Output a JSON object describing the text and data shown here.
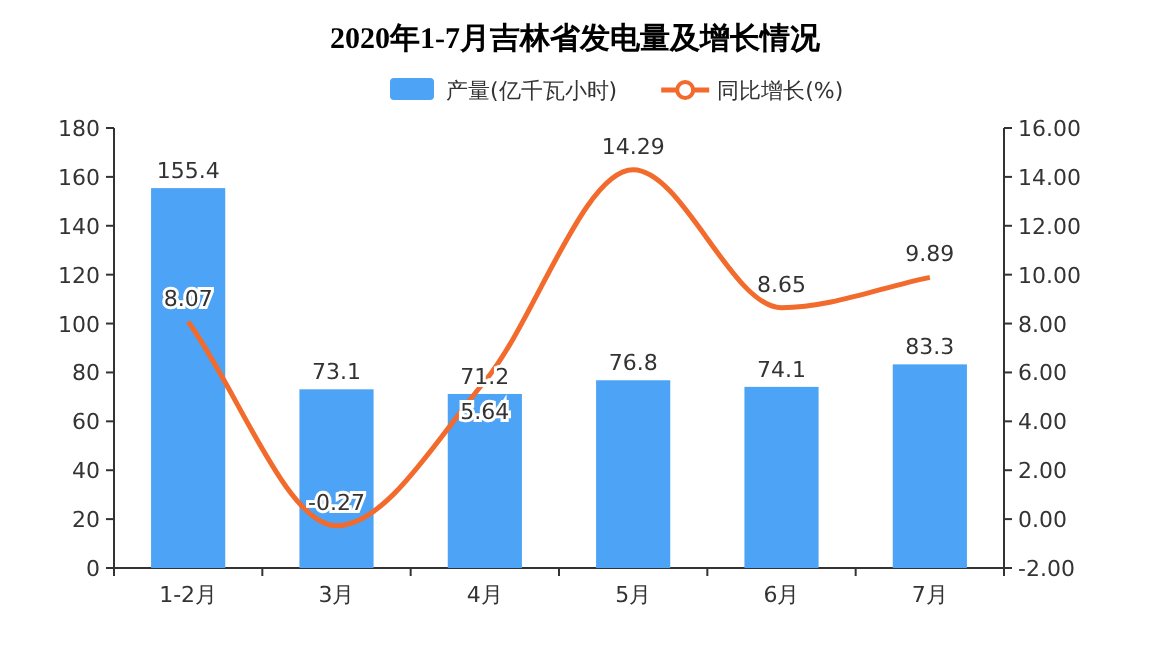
{
  "chart_data": {
    "type": "bar",
    "title": "2020年1-7月吉林省发电量及增长情况",
    "categories": [
      "1-2月",
      "3月",
      "4月",
      "5月",
      "6月",
      "7月"
    ],
    "series": [
      {
        "name": "产量(亿千瓦小时)",
        "color": "#4da3f5",
        "values": [
          155.4,
          73.1,
          71.2,
          76.8,
          74.1,
          83.3
        ]
      },
      {
        "name": "同比增长(%)",
        "type": "line",
        "axis": "y2",
        "color": "#f26b2c",
        "values": [
          8.07,
          -0.27,
          5.64,
          14.29,
          8.65,
          9.89
        ]
      }
    ],
    "ylim": [
      0,
      180
    ],
    "yticks": [
      0,
      20,
      40,
      60,
      80,
      100,
      120,
      140,
      160,
      180
    ],
    "y2lim": [
      -2,
      16
    ],
    "y2ticks": [
      {
        "value": -2,
        "label": "-2.00"
      },
      {
        "value": 0,
        "label": "0.00"
      },
      {
        "value": 2,
        "label": "2.00"
      },
      {
        "value": 4,
        "label": "4.00"
      },
      {
        "value": 6,
        "label": "6.00"
      },
      {
        "value": 8,
        "label": "8.00"
      },
      {
        "value": 10,
        "label": "10.00"
      },
      {
        "value": 12,
        "label": "12.00"
      },
      {
        "value": 14,
        "label": "14.00"
      },
      {
        "value": 16,
        "label": "16.00"
      }
    ],
    "data_labels": true,
    "legend": "top",
    "grid": false,
    "marker": "none",
    "line_style": "solid"
  }
}
